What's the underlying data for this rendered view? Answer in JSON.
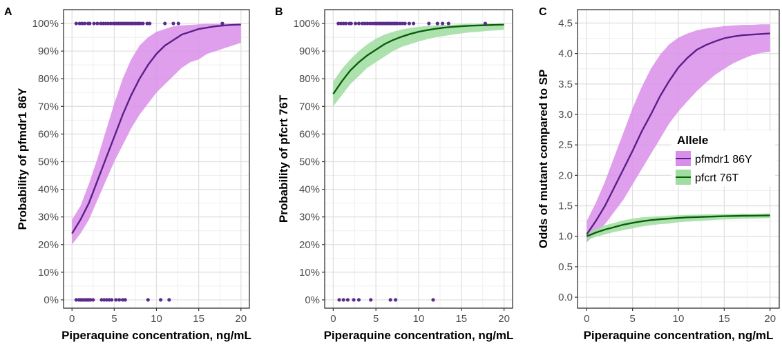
{
  "colors": {
    "pfmdr1_line": "#5b1f8a",
    "pfmdr1_band": "#d98ee9",
    "pfcrt_line": "#0a5e0a",
    "pfcrt_band": "#9fdda0",
    "points": "#5b2a8c",
    "grid_major": "#e0e0e0",
    "grid_minor": "#efefef",
    "frame": "#333333"
  },
  "chart_data": [
    {
      "panel": "A",
      "type": "line",
      "xlabel": "Piperaquine concentration, ng/mL",
      "ylabel": "Probability of pfmdr1 86Y",
      "xlim": [
        -1,
        21
      ],
      "ylim": [
        -0.03,
        1.05
      ],
      "xticks": [
        0,
        5,
        10,
        15,
        20
      ],
      "xtick_labels": [
        "0",
        "5",
        "10",
        "15",
        "20"
      ],
      "yticks": [
        0,
        0.1,
        0.2,
        0.3,
        0.4,
        0.5,
        0.6,
        0.7,
        0.8,
        0.9,
        1.0
      ],
      "ytick_labels": [
        "0%",
        "10%",
        "20%",
        "30%",
        "40%",
        "50%",
        "60%",
        "70%",
        "80%",
        "90%",
        "100%"
      ],
      "grid": true,
      "series": [
        {
          "color": "#5b1f8a",
          "band_color": "#d98ee9",
          "x": [
            0,
            1,
            2,
            3,
            4,
            5,
            6,
            7,
            8,
            9,
            10,
            11,
            12,
            13,
            14,
            15,
            16,
            17,
            18,
            19,
            20
          ],
          "y": [
            0.24,
            0.29,
            0.35,
            0.43,
            0.51,
            0.59,
            0.67,
            0.74,
            0.8,
            0.85,
            0.89,
            0.92,
            0.94,
            0.96,
            0.97,
            0.98,
            0.985,
            0.99,
            0.993,
            0.995,
            0.996
          ],
          "lower": [
            0.2,
            0.24,
            0.29,
            0.36,
            0.43,
            0.5,
            0.56,
            0.62,
            0.67,
            0.71,
            0.75,
            0.78,
            0.81,
            0.84,
            0.86,
            0.87,
            0.89,
            0.9,
            0.91,
            0.92,
            0.93
          ],
          "upper": [
            0.29,
            0.34,
            0.42,
            0.51,
            0.61,
            0.71,
            0.8,
            0.87,
            0.92,
            0.95,
            0.97,
            0.98,
            0.99,
            0.993,
            0.995,
            0.997,
            0.998,
            0.998,
            0.999,
            0.999,
            1.0
          ]
        }
      ],
      "points": {
        "x": [
          0.5,
          0.9,
          1.2,
          1.5,
          1.9,
          2.1,
          2.6,
          3.0,
          3.4,
          3.7,
          4.0,
          4.3,
          4.6,
          4.9,
          5.1,
          5.3,
          5.5,
          5.7,
          5.9,
          6.1,
          6.3,
          6.5,
          6.7,
          6.9,
          7.1,
          7.3,
          7.5,
          7.7,
          7.9,
          8.1,
          8.4,
          8.9,
          9.2,
          11.0,
          12.0,
          12.6,
          17.8,
          0.5,
          0.8,
          1.0,
          1.2,
          1.4,
          1.6,
          1.8,
          2.0,
          2.2,
          2.5,
          3.5,
          3.8,
          4.1,
          4.4,
          4.7,
          5.2,
          5.6,
          6.0,
          6.3,
          9.0,
          10.5,
          11.5
        ],
        "y": [
          1,
          1,
          1,
          1,
          1,
          1,
          1,
          1,
          1,
          1,
          1,
          1,
          1,
          1,
          1,
          1,
          1,
          1,
          1,
          1,
          1,
          1,
          1,
          1,
          1,
          1,
          1,
          1,
          1,
          1,
          1,
          1,
          1,
          1,
          1,
          1,
          1,
          0,
          0,
          0,
          0,
          0,
          0,
          0,
          0,
          0,
          0,
          0,
          0,
          0,
          0,
          0,
          0,
          0,
          0,
          0,
          0,
          0,
          0
        ]
      }
    },
    {
      "panel": "B",
      "type": "line",
      "xlabel": "Piperaquine concentration, ng/mL",
      "ylabel": "Probability of pfcrt 76T",
      "xlim": [
        -1,
        21
      ],
      "ylim": [
        -0.03,
        1.05
      ],
      "xticks": [
        0,
        5,
        10,
        15,
        20
      ],
      "xtick_labels": [
        "0",
        "5",
        "10",
        "15",
        "20"
      ],
      "yticks": [
        0,
        0.1,
        0.2,
        0.3,
        0.4,
        0.5,
        0.6,
        0.7,
        0.8,
        0.9,
        1.0
      ],
      "ytick_labels": [
        "0%",
        "10%",
        "20%",
        "30%",
        "40%",
        "50%",
        "60%",
        "70%",
        "80%",
        "90%",
        "100%"
      ],
      "grid": true,
      "series": [
        {
          "color": "#0a5e0a",
          "band_color": "#9fdda0",
          "x": [
            0,
            1,
            2,
            3,
            4,
            5,
            6,
            7,
            8,
            9,
            10,
            11,
            12,
            13,
            14,
            15,
            16,
            17,
            18,
            19,
            20
          ],
          "y": [
            0.745,
            0.79,
            0.83,
            0.86,
            0.885,
            0.905,
            0.925,
            0.94,
            0.952,
            0.962,
            0.97,
            0.976,
            0.981,
            0.985,
            0.988,
            0.99,
            0.992,
            0.993,
            0.994,
            0.995,
            0.996
          ],
          "lower": [
            0.7,
            0.74,
            0.78,
            0.81,
            0.84,
            0.86,
            0.88,
            0.9,
            0.915,
            0.925,
            0.935,
            0.943,
            0.95,
            0.955,
            0.96,
            0.964,
            0.968,
            0.97,
            0.973,
            0.975,
            0.977
          ],
          "upper": [
            0.79,
            0.835,
            0.87,
            0.9,
            0.925,
            0.945,
            0.96,
            0.97,
            0.978,
            0.984,
            0.988,
            0.991,
            0.993,
            0.995,
            0.996,
            0.997,
            0.998,
            0.998,
            0.999,
            0.999,
            0.999
          ]
        }
      ],
      "points": {
        "x": [
          0.6,
          0.9,
          1.2,
          1.5,
          1.9,
          2.1,
          2.6,
          3.0,
          3.4,
          3.7,
          4.0,
          4.3,
          4.6,
          4.9,
          5.1,
          5.3,
          5.5,
          5.7,
          5.9,
          6.1,
          6.3,
          6.5,
          6.7,
          6.9,
          7.1,
          7.3,
          7.5,
          7.8,
          8.1,
          8.4,
          8.9,
          9.4,
          11.2,
          12.2,
          12.8,
          13.5,
          17.8,
          0.7,
          1.2,
          1.7,
          2.4,
          3.0,
          4.4,
          6.7,
          7.3,
          11.7
        ],
        "y": [
          1,
          1,
          1,
          1,
          1,
          1,
          1,
          1,
          1,
          1,
          1,
          1,
          1,
          1,
          1,
          1,
          1,
          1,
          1,
          1,
          1,
          1,
          1,
          1,
          1,
          1,
          1,
          1,
          1,
          1,
          1,
          1,
          1,
          1,
          1,
          1,
          1,
          0,
          0,
          0,
          0,
          0,
          0,
          0,
          0,
          0
        ]
      }
    },
    {
      "panel": "C",
      "type": "line",
      "xlabel": "Piperaquine concentration, ng/mL",
      "ylabel": "Odds of mutant compared to SP",
      "xlim": [
        -1,
        21
      ],
      "ylim": [
        -0.18,
        4.72
      ],
      "xticks": [
        0,
        5,
        10,
        15,
        20
      ],
      "xtick_labels": [
        "0",
        "5",
        "10",
        "15",
        "20"
      ],
      "yticks": [
        0,
        0.5,
        1.0,
        1.5,
        2.0,
        2.5,
        3.0,
        3.5,
        4.0,
        4.5
      ],
      "ytick_labels": [
        "0.0",
        "0.5",
        "1.0",
        "1.5",
        "2.0",
        "2.5",
        "3.0",
        "3.5",
        "4.0",
        "4.5"
      ],
      "grid": true,
      "legend_position": "right",
      "legend_title": "Allele",
      "series": [
        {
          "name": "pfmdr1 86Y",
          "color": "#5b1f8a",
          "band_color": "#d98ee9",
          "x": [
            0,
            1,
            2,
            3,
            4,
            5,
            6,
            7,
            8,
            9,
            10,
            11,
            12,
            13,
            14,
            15,
            16,
            17,
            18,
            19,
            20
          ],
          "y": [
            1.03,
            1.25,
            1.5,
            1.8,
            2.1,
            2.4,
            2.72,
            3.0,
            3.3,
            3.55,
            3.77,
            3.93,
            4.06,
            4.14,
            4.2,
            4.25,
            4.28,
            4.3,
            4.31,
            4.32,
            4.33
          ],
          "lower": [
            0.9,
            1.05,
            1.2,
            1.4,
            1.6,
            1.85,
            2.1,
            2.35,
            2.6,
            2.85,
            3.05,
            3.22,
            3.38,
            3.52,
            3.65,
            3.75,
            3.84,
            3.91,
            3.97,
            4.01,
            4.03
          ],
          "upper": [
            1.25,
            1.55,
            1.9,
            2.3,
            2.7,
            3.1,
            3.45,
            3.75,
            3.98,
            4.15,
            4.26,
            4.33,
            4.38,
            4.41,
            4.43,
            4.45,
            4.46,
            4.47,
            4.47,
            4.48,
            4.48
          ]
        },
        {
          "name": "pfcrt 76T",
          "color": "#0a5e0a",
          "band_color": "#9fdda0",
          "x": [
            0,
            1,
            2,
            3,
            4,
            5,
            6,
            7,
            8,
            9,
            10,
            11,
            12,
            13,
            14,
            15,
            16,
            17,
            18,
            19,
            20
          ],
          "y": [
            1.0,
            1.06,
            1.11,
            1.15,
            1.19,
            1.22,
            1.245,
            1.265,
            1.28,
            1.29,
            1.3,
            1.31,
            1.315,
            1.32,
            1.325,
            1.33,
            1.333,
            1.336,
            1.338,
            1.34,
            1.342
          ],
          "lower": [
            0.94,
            0.99,
            1.03,
            1.07,
            1.1,
            1.13,
            1.16,
            1.18,
            1.2,
            1.21,
            1.23,
            1.24,
            1.25,
            1.26,
            1.27,
            1.275,
            1.28,
            1.285,
            1.29,
            1.295,
            1.3
          ],
          "upper": [
            1.05,
            1.12,
            1.18,
            1.22,
            1.26,
            1.29,
            1.31,
            1.32,
            1.33,
            1.34,
            1.345,
            1.35,
            1.355,
            1.36,
            1.362,
            1.365,
            1.367,
            1.37,
            1.37,
            1.372,
            1.375
          ]
        }
      ]
    }
  ]
}
